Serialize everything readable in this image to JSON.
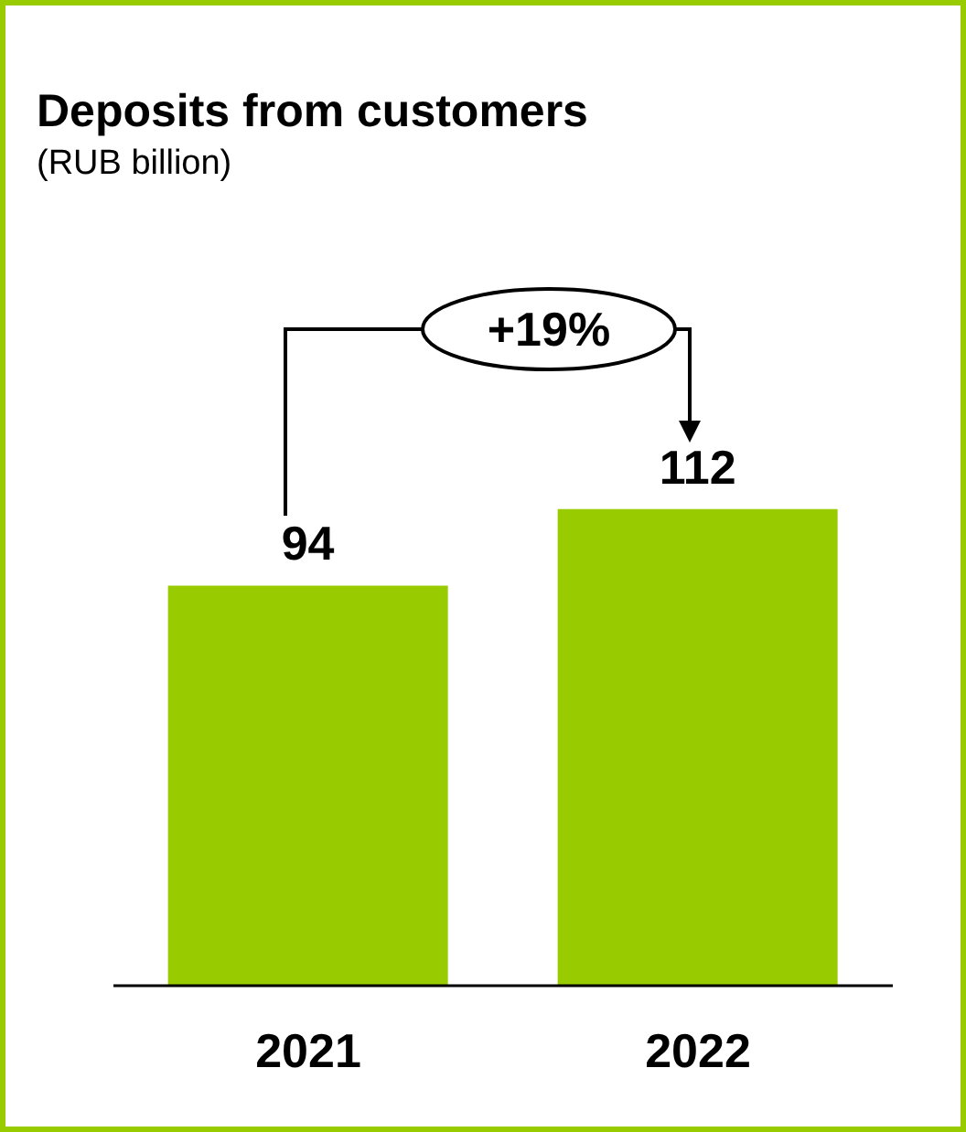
{
  "chart_data": {
    "type": "bar",
    "title": "Deposits from customers",
    "subtitle": "(RUB billion)",
    "categories": [
      "2021",
      "2022"
    ],
    "values": [
      94,
      112
    ],
    "color": "#99cc00",
    "data_labels": true,
    "annotations": [
      "+19%"
    ],
    "grid": false,
    "legend": false
  }
}
